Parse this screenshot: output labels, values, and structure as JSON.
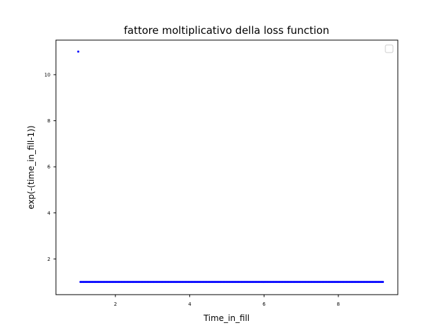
{
  "chart_data": {
    "type": "scatter",
    "title": "fattore moltiplicativo della loss function",
    "xlabel": "Time_in_fill",
    "ylabel": "exp(-(time_in_fill-1))",
    "xlim": [
      0.4,
      9.6
    ],
    "ylim": [
      0.45,
      11.5
    ],
    "xticks": [
      2,
      4,
      6,
      8
    ],
    "yticks": [
      2,
      4,
      6,
      8,
      10
    ],
    "grid": false,
    "legend": "top-right (empty)",
    "series": [
      {
        "color": "#0000ff",
        "marker": "dot",
        "outlier": {
          "x": 1.0,
          "y": 11.0
        },
        "constant_run": {
          "x_start": 1.06,
          "x_end": 9.2,
          "count": 240,
          "y": 1.0
        }
      }
    ]
  }
}
